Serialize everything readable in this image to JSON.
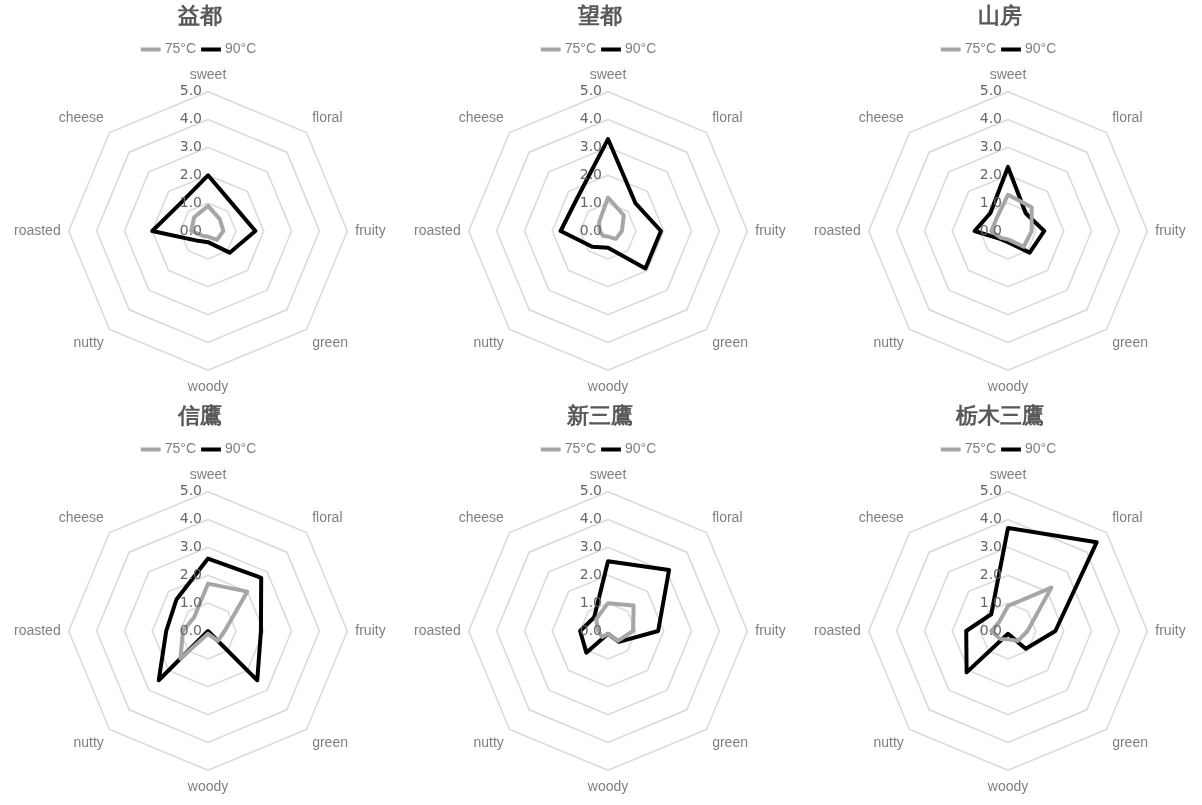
{
  "chart_data": [
    {
      "type": "radar",
      "title": "益都",
      "categories": [
        "sweet",
        "floral",
        "fruity",
        "green",
        "woody",
        "nutty",
        "roasted",
        "cheese"
      ],
      "legend": "top",
      "grid": true,
      "marker": "none",
      "ylim": [
        0,
        5
      ],
      "yticks": [
        {
          "value": 0,
          "label": "0.0"
        },
        {
          "value": 1,
          "label": "1.0"
        },
        {
          "value": 2,
          "label": "2.0"
        },
        {
          "value": 3,
          "label": "3.0"
        },
        {
          "value": 4,
          "label": "4.0"
        },
        {
          "value": 5,
          "label": "5.0"
        }
      ],
      "series": [
        {
          "name": "75°C",
          "color": "#a6a6a6",
          "values": [
            0.9,
            0.6,
            0.55,
            0.45,
            0.2,
            0.25,
            0.6,
            0.7
          ]
        },
        {
          "name": "90°C",
          "color": "#000000",
          "values": [
            2.0,
            1.3,
            1.7,
            1.1,
            0.4,
            0.5,
            2.0,
            1.4
          ]
        }
      ]
    },
    {
      "type": "radar",
      "title": "望都",
      "categories": [
        "sweet",
        "floral",
        "fruity",
        "green",
        "woody",
        "nutty",
        "roasted",
        "cheese"
      ],
      "legend": "top",
      "grid": true,
      "marker": "none",
      "ylim": [
        0,
        5
      ],
      "yticks": [
        {
          "value": 0,
          "label": "0.0"
        },
        {
          "value": 1,
          "label": "1.0"
        },
        {
          "value": 2,
          "label": "2.0"
        },
        {
          "value": 3,
          "label": "3.0"
        },
        {
          "value": 4,
          "label": "4.0"
        },
        {
          "value": 5,
          "label": "5.0"
        }
      ],
      "series": [
        {
          "name": "75°C",
          "color": "#a6a6a6",
          "values": [
            1.2,
            0.8,
            0.5,
            0.4,
            0.2,
            0.25,
            0.3,
            0.45
          ]
        },
        {
          "name": "90°C",
          "color": "#000000",
          "values": [
            3.3,
            1.4,
            1.9,
            1.9,
            0.6,
            0.8,
            1.7,
            1.6
          ]
        }
      ]
    },
    {
      "type": "radar",
      "title": "山房",
      "categories": [
        "sweet",
        "floral",
        "fruity",
        "green",
        "woody",
        "nutty",
        "roasted",
        "cheese"
      ],
      "legend": "top",
      "grid": true,
      "marker": "none",
      "ylim": [
        0,
        5
      ],
      "yticks": [
        {
          "value": 0,
          "label": "0.0"
        },
        {
          "value": 1,
          "label": "1.0"
        },
        {
          "value": 2,
          "label": "2.0"
        },
        {
          "value": 3,
          "label": "3.0"
        },
        {
          "value": 4,
          "label": "4.0"
        },
        {
          "value": 5,
          "label": "5.0"
        }
      ],
      "series": [
        {
          "name": "75°C",
          "color": "#a6a6a6",
          "values": [
            1.3,
            1.2,
            0.85,
            0.8,
            0.3,
            0.35,
            0.6,
            0.6
          ]
        },
        {
          "name": "90°C",
          "color": "#000000",
          "values": [
            2.3,
            0.9,
            1.3,
            1.1,
            0.4,
            0.4,
            1.2,
            0.9
          ]
        }
      ]
    },
    {
      "type": "radar",
      "title": "信鷹",
      "categories": [
        "sweet",
        "floral",
        "fruity",
        "green",
        "woody",
        "nutty",
        "roasted",
        "cheese"
      ],
      "legend": "top",
      "grid": true,
      "marker": "none",
      "ylim": [
        0,
        5
      ],
      "yticks": [
        {
          "value": 0,
          "label": "0.0"
        },
        {
          "value": 1,
          "label": "1.0"
        },
        {
          "value": 2,
          "label": "2.0"
        },
        {
          "value": 3,
          "label": "3.0"
        },
        {
          "value": 4,
          "label": "4.0"
        },
        {
          "value": 5,
          "label": "5.0"
        }
      ],
      "series": [
        {
          "name": "75°C",
          "color": "#a6a6a6",
          "values": [
            1.7,
            2.0,
            0.6,
            0.5,
            0.1,
            1.4,
            0.9,
            0.7
          ]
        },
        {
          "name": "90°C",
          "color": "#000000",
          "values": [
            2.6,
            2.7,
            1.9,
            2.5,
            0.0,
            2.5,
            1.5,
            1.6
          ]
        }
      ]
    },
    {
      "type": "radar",
      "title": "新三鷹",
      "categories": [
        "sweet",
        "floral",
        "fruity",
        "green",
        "woody",
        "nutty",
        "roasted",
        "cheese"
      ],
      "legend": "top",
      "grid": true,
      "marker": "none",
      "ylim": [
        0,
        5
      ],
      "yticks": [
        {
          "value": 0,
          "label": "0.0"
        },
        {
          "value": 1,
          "label": "1.0"
        },
        {
          "value": 2,
          "label": "2.0"
        },
        {
          "value": 3,
          "label": "3.0"
        },
        {
          "value": 4,
          "label": "4.0"
        },
        {
          "value": 5,
          "label": "5.0"
        }
      ],
      "series": [
        {
          "name": "75°C",
          "color": "#a6a6a6",
          "values": [
            1.0,
            1.3,
            0.9,
            0.5,
            0.1,
            0.3,
            0.35,
            0.6
          ]
        },
        {
          "name": "90°C",
          "color": "#000000",
          "values": [
            2.5,
            3.1,
            1.8,
            0.55,
            0.1,
            1.1,
            1.0,
            0.7
          ]
        }
      ]
    },
    {
      "type": "radar",
      "title": "栃木三鷹",
      "categories": [
        "sweet",
        "floral",
        "fruity",
        "green",
        "woody",
        "nutty",
        "roasted",
        "cheese"
      ],
      "legend": "top",
      "grid": true,
      "marker": "none",
      "ylim": [
        0,
        5
      ],
      "yticks": [
        {
          "value": 0,
          "label": "0.0"
        },
        {
          "value": 1,
          "label": "1.0"
        },
        {
          "value": 2,
          "label": "2.0"
        },
        {
          "value": 3,
          "label": "3.0"
        },
        {
          "value": 4,
          "label": "4.0"
        },
        {
          "value": 5,
          "label": "5.0"
        }
      ],
      "series": [
        {
          "name": "75°C",
          "color": "#a6a6a6",
          "values": [
            0.9,
            2.2,
            0.7,
            0.5,
            0.3,
            0.4,
            0.6,
            0.45
          ]
        },
        {
          "name": "90°C",
          "color": "#000000",
          "values": [
            3.7,
            4.5,
            1.7,
            0.9,
            0.1,
            2.1,
            1.5,
            0.85
          ]
        }
      ]
    }
  ]
}
